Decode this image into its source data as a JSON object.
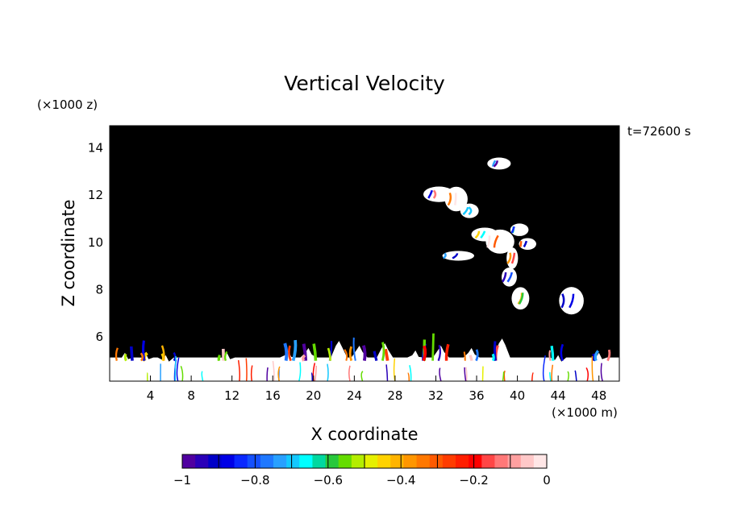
{
  "chart_data": {
    "type": "heatmap",
    "title": "Vertical Velocity",
    "xlabel": "X coordinate",
    "ylabel": "Z coordinate",
    "x_unit": "(×1000 m)",
    "y_unit": "(×1000 z)",
    "time_label": "t=72600 s",
    "xlim": [
      0,
      50
    ],
    "ylim": [
      4.1,
      14.9
    ],
    "x_ticks": [
      4,
      8,
      12,
      16,
      20,
      24,
      28,
      32,
      36,
      40,
      44,
      48
    ],
    "y_ticks": [
      6,
      8,
      10,
      12,
      14
    ],
    "background_color": "#000000",
    "colorbar": {
      "vmin": -1,
      "vmax": 0,
      "tick_values": [
        -1,
        -0.8,
        -0.6,
        -0.4,
        -0.2,
        0
      ],
      "tick_labels": [
        "−1",
        "−0.8",
        "−0.6",
        "−0.4",
        "−0.2",
        "0"
      ],
      "colors": [
        "#5000a0",
        "#2a00b8",
        "#0000c8",
        "#0000e6",
        "#0a28ff",
        "#1450ff",
        "#1e78ff",
        "#28a0ff",
        "#14c8ff",
        "#00ffff",
        "#00d8a0",
        "#28c83c",
        "#64dc00",
        "#b4ee00",
        "#e6f000",
        "#ffd200",
        "#ffb400",
        "#ff9600",
        "#ff7800",
        "#ff5a00",
        "#ff3c00",
        "#ff1e00",
        "#ff0000",
        "#ff4646",
        "#ff7878",
        "#ffa0a0",
        "#ffc8c8",
        "#ffe6e6"
      ],
      "highlighted_colors": {
        "near_zero": "#ffffff"
      }
    },
    "field_description_data": {
      "surface_layer_top": 5.1,
      "surface_layer_color": "#ffffff",
      "peaks": [
        {
          "x": 1.5,
          "z": 5.3
        },
        {
          "x": 3.5,
          "z": 5.3
        },
        {
          "x": 5.5,
          "z": 5.2
        },
        {
          "x": 11.5,
          "z": 5.3
        },
        {
          "x": 17.5,
          "z": 5.4
        },
        {
          "x": 19.5,
          "z": 5.5
        },
        {
          "x": 22.5,
          "z": 5.8
        },
        {
          "x": 24.5,
          "z": 5.6
        },
        {
          "x": 27,
          "z": 5.7
        },
        {
          "x": 30,
          "z": 5.4
        },
        {
          "x": 32.5,
          "z": 5.6
        },
        {
          "x": 35.5,
          "z": 5.5
        },
        {
          "x": 38.5,
          "z": 5.9
        },
        {
          "x": 44,
          "z": 5.2
        },
        {
          "x": 48,
          "z": 5.3
        }
      ],
      "upper_patches": [
        {
          "x": 38.2,
          "z": 13.3
        },
        {
          "x": 32.3,
          "z": 12.0
        },
        {
          "x": 34.0,
          "z": 11.8
        },
        {
          "x": 35.3,
          "z": 11.3
        },
        {
          "x": 36.8,
          "z": 10.3
        },
        {
          "x": 38.3,
          "z": 10.0
        },
        {
          "x": 40.2,
          "z": 10.5
        },
        {
          "x": 41.0,
          "z": 9.9
        },
        {
          "x": 39.5,
          "z": 9.3
        },
        {
          "x": 39.2,
          "z": 8.5
        },
        {
          "x": 40.3,
          "z": 7.6
        },
        {
          "x": 34.2,
          "z": 9.4
        },
        {
          "x": 45.3,
          "z": 7.5
        }
      ]
    }
  }
}
